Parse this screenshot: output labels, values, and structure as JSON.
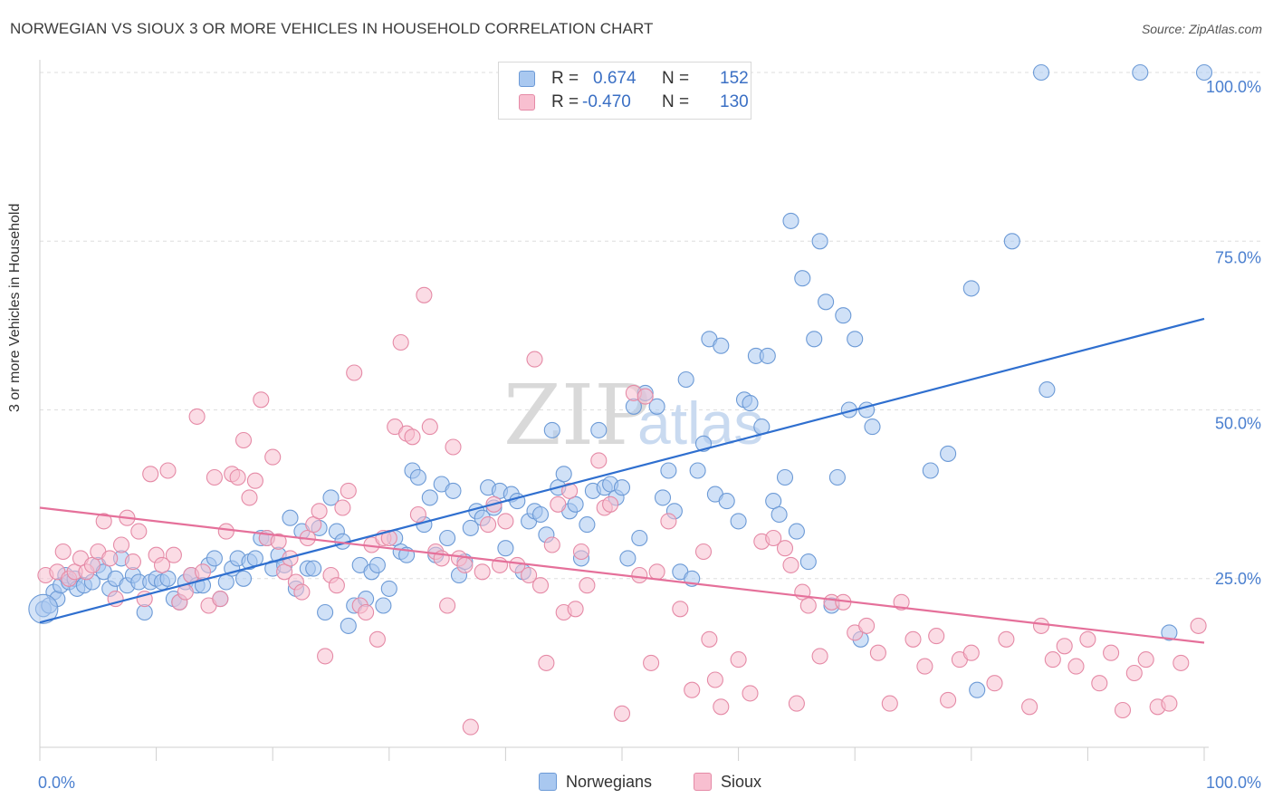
{
  "title": "NORWEGIAN VS SIOUX 3 OR MORE VEHICLES IN HOUSEHOLD CORRELATION CHART",
  "source": "Source: ZipAtlas.com",
  "watermark": {
    "zip": "ZIP",
    "atlas": "atlas"
  },
  "legend": {
    "rows": [
      {
        "r_label": "R =",
        "r_value": "0.674",
        "n_label": "N =",
        "n_value": "152",
        "color": "#a9c8f0",
        "border": "#6c9ad6"
      },
      {
        "r_label": "R =",
        "r_value": "-0.470",
        "n_label": "N =",
        "n_value": "130",
        "color": "#f8bfd0",
        "border": "#e58aa6"
      }
    ]
  },
  "bottom_legend": [
    {
      "label": "Norwegians",
      "color": "#a9c8f0",
      "border": "#6c9ad6"
    },
    {
      "label": "Sioux",
      "color": "#f8bfd0",
      "border": "#e58aa6"
    }
  ],
  "chart_data": {
    "type": "scatter",
    "title": "NORWEGIAN VS SIOUX 3 OR MORE VEHICLES IN HOUSEHOLD CORRELATION CHART",
    "xlabel": "",
    "ylabel": "3 or more Vehicles in Household",
    "xlim": [
      0,
      100
    ],
    "ylim": [
      0,
      100
    ],
    "x_tick_labels": {
      "min": "0.0%",
      "max": "100.0%"
    },
    "y_ticks": [
      {
        "value": 25,
        "label": "25.0%"
      },
      {
        "value": 50,
        "label": "50.0%"
      },
      {
        "value": 75,
        "label": "75.0%"
      },
      {
        "value": 100,
        "label": "100.0%"
      }
    ],
    "grid": "horizontal dashed",
    "legend_position": "top-center",
    "series": [
      {
        "name": "Norwegians",
        "color": "#6c9ad6",
        "fill": "#a9c8f0",
        "trend_color": "#2f6fcf",
        "trend": {
          "x": [
            0,
            100
          ],
          "y": [
            18.5,
            63.5
          ]
        },
        "points": [
          [
            0.3,
            20.5
          ],
          [
            0.8,
            21
          ],
          [
            1.2,
            23
          ],
          [
            1.5,
            22
          ],
          [
            1.8,
            24
          ],
          [
            2.2,
            25.5
          ],
          [
            2.5,
            24.5
          ],
          [
            3.0,
            25
          ],
          [
            3.2,
            23.5
          ],
          [
            3.8,
            24
          ],
          [
            4.5,
            24.5
          ],
          [
            5.0,
            27
          ],
          [
            5.5,
            26
          ],
          [
            6.0,
            23.5
          ],
          [
            6.5,
            25
          ],
          [
            7.0,
            28
          ],
          [
            7.5,
            24
          ],
          [
            8.0,
            25.5
          ],
          [
            8.5,
            24.5
          ],
          [
            9.0,
            20
          ],
          [
            9.5,
            24.5
          ],
          [
            10,
            25
          ],
          [
            10.5,
            24.5
          ],
          [
            11,
            25
          ],
          [
            11.5,
            22
          ],
          [
            12,
            21.5
          ],
          [
            12.5,
            24.5
          ],
          [
            13,
            25.5
          ],
          [
            13.5,
            24
          ],
          [
            14,
            24
          ],
          [
            14.5,
            27
          ],
          [
            15,
            28
          ],
          [
            15.5,
            22
          ],
          [
            16,
            24.5
          ],
          [
            16.5,
            26.5
          ],
          [
            17,
            28
          ],
          [
            17.5,
            25
          ],
          [
            18,
            27.5
          ],
          [
            18.5,
            28
          ],
          [
            19,
            31
          ],
          [
            19.5,
            31
          ],
          [
            20,
            26.5
          ],
          [
            20.5,
            28.5
          ],
          [
            21,
            27
          ],
          [
            21.5,
            34
          ],
          [
            22,
            23.5
          ],
          [
            22.5,
            32
          ],
          [
            23,
            26.5
          ],
          [
            23.5,
            26.5
          ],
          [
            24,
            32.5
          ],
          [
            24.5,
            20
          ],
          [
            25,
            37
          ],
          [
            25.5,
            32
          ],
          [
            26,
            30.5
          ],
          [
            26.5,
            18
          ],
          [
            27,
            21
          ],
          [
            27.5,
            27
          ],
          [
            28,
            22
          ],
          [
            28.5,
            26
          ],
          [
            29,
            27
          ],
          [
            29.5,
            21
          ],
          [
            30,
            23.5
          ],
          [
            30.5,
            31
          ],
          [
            31,
            29
          ],
          [
            31.5,
            28.5
          ],
          [
            32,
            41
          ],
          [
            32.5,
            40
          ],
          [
            33,
            33
          ],
          [
            33.5,
            37
          ],
          [
            34,
            28.5
          ],
          [
            34.5,
            39
          ],
          [
            35,
            31
          ],
          [
            35.5,
            38
          ],
          [
            36,
            25.5
          ],
          [
            36.5,
            27.5
          ],
          [
            37,
            32.5
          ],
          [
            37.5,
            35
          ],
          [
            38,
            34
          ],
          [
            38.5,
            38.5
          ],
          [
            39,
            35.5
          ],
          [
            39.5,
            38
          ],
          [
            40,
            29.5
          ],
          [
            40.5,
            37.5
          ],
          [
            41,
            36.5
          ],
          [
            41.5,
            26
          ],
          [
            42,
            33.5
          ],
          [
            42.5,
            35
          ],
          [
            43,
            34.5
          ],
          [
            43.5,
            31.5
          ],
          [
            44,
            47
          ],
          [
            44.5,
            38.5
          ],
          [
            45,
            40.5
          ],
          [
            45.5,
            35
          ],
          [
            46,
            36
          ],
          [
            46.5,
            28
          ],
          [
            47,
            33
          ],
          [
            47.5,
            38
          ],
          [
            48,
            47
          ],
          [
            48.5,
            38.5
          ],
          [
            49,
            39
          ],
          [
            49.5,
            37
          ],
          [
            50,
            38.5
          ],
          [
            50.5,
            28
          ],
          [
            51,
            50.5
          ],
          [
            51.5,
            31
          ],
          [
            52,
            52.5
          ],
          [
            53,
            50.5
          ],
          [
            53.5,
            37
          ],
          [
            54,
            41
          ],
          [
            54.5,
            35
          ],
          [
            55,
            26
          ],
          [
            55.5,
            54.5
          ],
          [
            56,
            25
          ],
          [
            56.5,
            41
          ],
          [
            57,
            45
          ],
          [
            57.5,
            60.5
          ],
          [
            58,
            37.5
          ],
          [
            58.5,
            59.5
          ],
          [
            59,
            36.5
          ],
          [
            60,
            33.5
          ],
          [
            60.5,
            51.5
          ],
          [
            61,
            51
          ],
          [
            61.5,
            58
          ],
          [
            62,
            47.5
          ],
          [
            62.5,
            58
          ],
          [
            63,
            36.5
          ],
          [
            63.5,
            34.5
          ],
          [
            64,
            40
          ],
          [
            64.5,
            78
          ],
          [
            65,
            32
          ],
          [
            65.5,
            69.5
          ],
          [
            66,
            27.5
          ],
          [
            66.5,
            60.5
          ],
          [
            67,
            75
          ],
          [
            67.5,
            66
          ],
          [
            68,
            21
          ],
          [
            68.5,
            40
          ],
          [
            69,
            64
          ],
          [
            69.5,
            50
          ],
          [
            70,
            60.5
          ],
          [
            70.5,
            16
          ],
          [
            71,
            50
          ],
          [
            71.5,
            47.5
          ],
          [
            76.5,
            41
          ],
          [
            78,
            43.5
          ],
          [
            80,
            68
          ],
          [
            80.5,
            8.5
          ],
          [
            83.5,
            75
          ],
          [
            86,
            100
          ],
          [
            86.5,
            53
          ],
          [
            94.5,
            100
          ],
          [
            97,
            17
          ],
          [
            100,
            100
          ]
        ]
      },
      {
        "name": "Sioux",
        "color": "#e58aa6",
        "fill": "#f8bfd0",
        "trend_color": "#e5709a",
        "trend": {
          "x": [
            0,
            100
          ],
          "y": [
            35.5,
            15.5
          ]
        },
        "points": [
          [
            0.5,
            25.5
          ],
          [
            1.5,
            26
          ],
          [
            2.0,
            29
          ],
          [
            2.5,
            25
          ],
          [
            3,
            26
          ],
          [
            3.5,
            28
          ],
          [
            4,
            26
          ],
          [
            4.5,
            27
          ],
          [
            5,
            29
          ],
          [
            5.5,
            33.5
          ],
          [
            6,
            28
          ],
          [
            6.5,
            22
          ],
          [
            7,
            30
          ],
          [
            7.5,
            34
          ],
          [
            8,
            27.5
          ],
          [
            8.5,
            32
          ],
          [
            9,
            22
          ],
          [
            9.5,
            40.5
          ],
          [
            10,
            28.5
          ],
          [
            10.5,
            27
          ],
          [
            11,
            41
          ],
          [
            11.5,
            28.5
          ],
          [
            12,
            21.5
          ],
          [
            12.5,
            23
          ],
          [
            13,
            25.5
          ],
          [
            13.5,
            49
          ],
          [
            14,
            26
          ],
          [
            14.5,
            21
          ],
          [
            15,
            40
          ],
          [
            15.5,
            22
          ],
          [
            16,
            32
          ],
          [
            16.5,
            40.5
          ],
          [
            17,
            40
          ],
          [
            17.5,
            45.5
          ],
          [
            18,
            37
          ],
          [
            18.5,
            39.5
          ],
          [
            19,
            51.5
          ],
          [
            19.5,
            31
          ],
          [
            20,
            43
          ],
          [
            20.5,
            30.5
          ],
          [
            21,
            26
          ],
          [
            21.5,
            28
          ],
          [
            22,
            24.5
          ],
          [
            22.5,
            23
          ],
          [
            23,
            31
          ],
          [
            23.5,
            33
          ],
          [
            24,
            35
          ],
          [
            24.5,
            13.5
          ],
          [
            25,
            25.5
          ],
          [
            25.5,
            24
          ],
          [
            26,
            35.5
          ],
          [
            26.5,
            38
          ],
          [
            27,
            55.5
          ],
          [
            27.5,
            21
          ],
          [
            28,
            20
          ],
          [
            28.5,
            30
          ],
          [
            29,
            16
          ],
          [
            29.5,
            31
          ],
          [
            30,
            31
          ],
          [
            30.5,
            47.5
          ],
          [
            31,
            60
          ],
          [
            31.5,
            46.5
          ],
          [
            32,
            46
          ],
          [
            32.5,
            34.5
          ],
          [
            33,
            67
          ],
          [
            33.5,
            47.5
          ],
          [
            34,
            29
          ],
          [
            34.5,
            28
          ],
          [
            35,
            21
          ],
          [
            35.5,
            44.5
          ],
          [
            36,
            28
          ],
          [
            36.5,
            27
          ],
          [
            37,
            3
          ],
          [
            38,
            26
          ],
          [
            38.5,
            33
          ],
          [
            39,
            36
          ],
          [
            39.5,
            27
          ],
          [
            40,
            33.5
          ],
          [
            41,
            27
          ],
          [
            42,
            25.5
          ],
          [
            42.5,
            57.5
          ],
          [
            43,
            24
          ],
          [
            43.5,
            12.5
          ],
          [
            44,
            30
          ],
          [
            44.5,
            36
          ],
          [
            45,
            20
          ],
          [
            45.5,
            38
          ],
          [
            46,
            20.5
          ],
          [
            46.5,
            29
          ],
          [
            47,
            24
          ],
          [
            48,
            42.5
          ],
          [
            48.5,
            35.5
          ],
          [
            49,
            36
          ],
          [
            50,
            5
          ],
          [
            51,
            52.5
          ],
          [
            51.5,
            25.5
          ],
          [
            52,
            52
          ],
          [
            52.5,
            12.5
          ],
          [
            53,
            26
          ],
          [
            54,
            33.5
          ],
          [
            55,
            20.5
          ],
          [
            56,
            8.5
          ],
          [
            57,
            29
          ],
          [
            57.5,
            16
          ],
          [
            58,
            10
          ],
          [
            58.5,
            6
          ],
          [
            60,
            13
          ],
          [
            61,
            8
          ],
          [
            62,
            30.5
          ],
          [
            63,
            31
          ],
          [
            64,
            29.5
          ],
          [
            64.5,
            27
          ],
          [
            65,
            6.5
          ],
          [
            65.5,
            23
          ],
          [
            66,
            21
          ],
          [
            67,
            13.5
          ],
          [
            68,
            21.5
          ],
          [
            69,
            21.5
          ],
          [
            70,
            17
          ],
          [
            71,
            18
          ],
          [
            72,
            14
          ],
          [
            73,
            6.5
          ],
          [
            74,
            21.5
          ],
          [
            75,
            16
          ],
          [
            76,
            12
          ],
          [
            77,
            16.5
          ],
          [
            78,
            7
          ],
          [
            79,
            13
          ],
          [
            80,
            14
          ],
          [
            82,
            9.5
          ],
          [
            83,
            16
          ],
          [
            85,
            6
          ],
          [
            86,
            18
          ],
          [
            87,
            13
          ],
          [
            88,
            15
          ],
          [
            89,
            12
          ],
          [
            90,
            16
          ],
          [
            91,
            9.5
          ],
          [
            92,
            14
          ],
          [
            93,
            5.5
          ],
          [
            94,
            11
          ],
          [
            95,
            13
          ],
          [
            96,
            6
          ],
          [
            97,
            6.5
          ],
          [
            98,
            12.5
          ],
          [
            99.5,
            18
          ]
        ]
      }
    ]
  }
}
